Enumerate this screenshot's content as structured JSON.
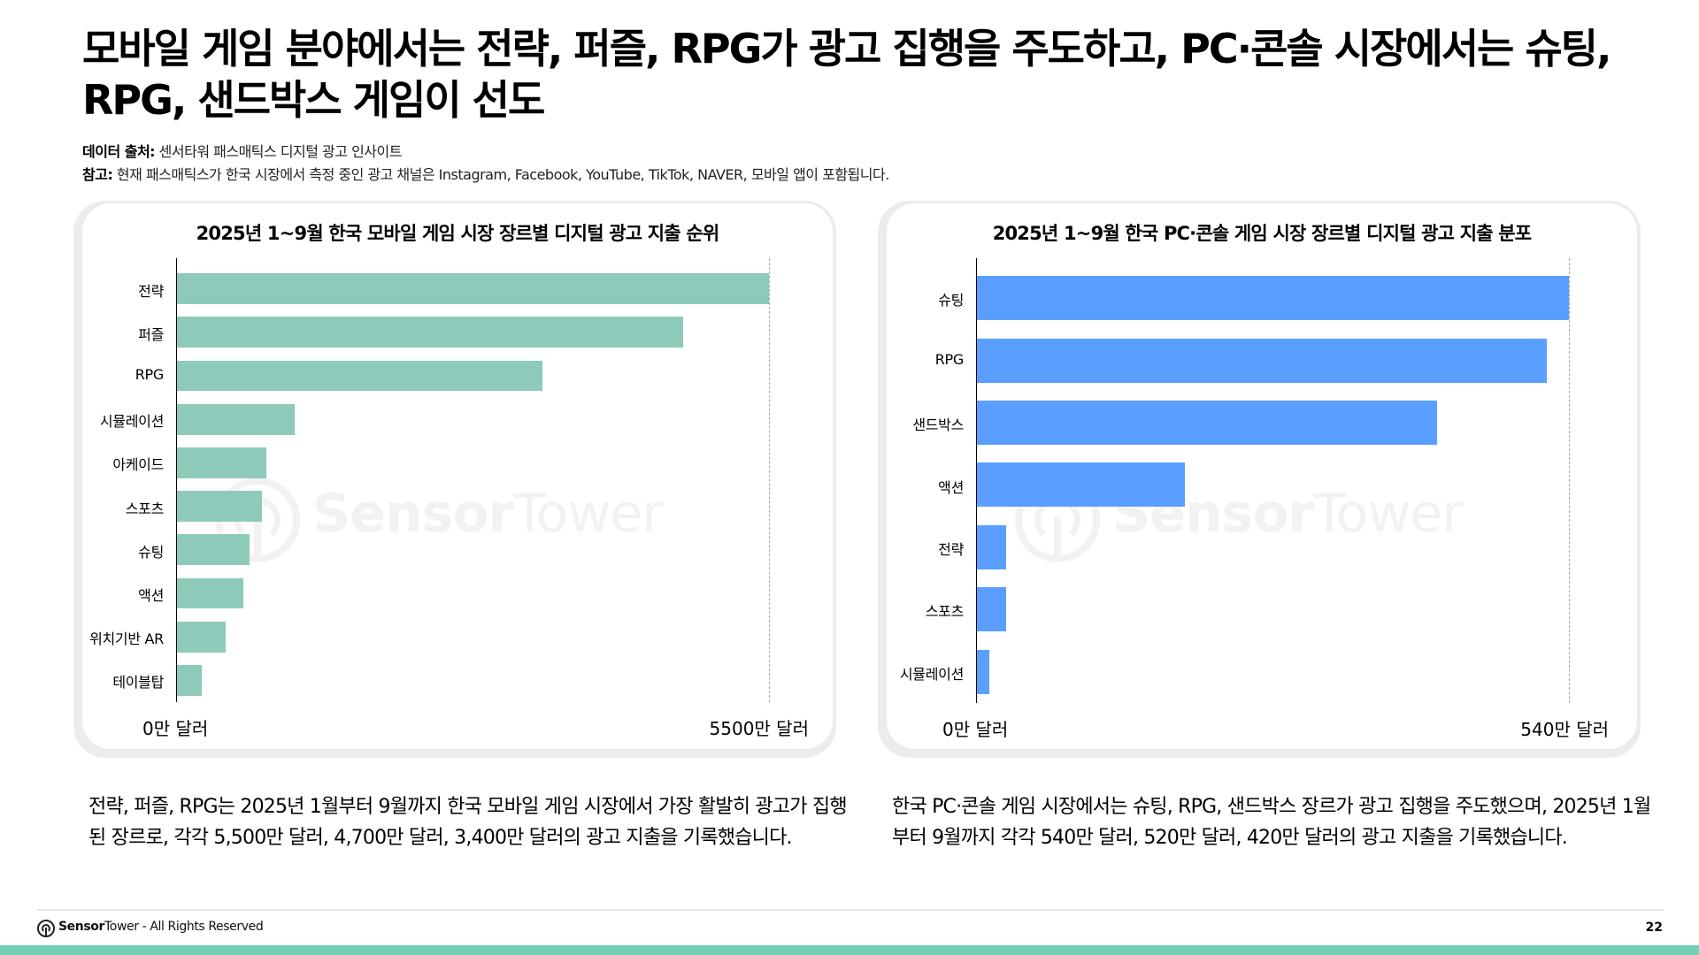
{
  "title": "모바일 게임 분야에서는 전략, 퍼즐, RPG가 광고 집행을 주도하고, PC·콘솔 시장에서는 슈팅, RPG, 샌드박스 게임이 선도",
  "source": {
    "label": "데이터 출처:",
    "text": " 센서타워 패스매틱스 디지털 광고 인사이트"
  },
  "note": {
    "label": "참고:",
    "text": " 현재 패스매틱스가 한국 시장에서 측정 중인 광고 채널은 Instagram, Facebook, YouTube, TikTok, NAVER, 모바일 앱이 포함됩니다."
  },
  "watermark": {
    "bold": "Sensor",
    "light": "Tower"
  },
  "colors": {
    "mobile_bar": "#8ecab9",
    "pc_bar": "#5a9fff",
    "bottom_bar": "#74cfb8",
    "card_frame": "#ececec"
  },
  "chart_data": [
    {
      "type": "bar",
      "orientation": "horizontal",
      "title": "2025년 1~9월 한국 모바일 게임 시장 장르별 디지털 광고 지출 순위",
      "categories": [
        "전략",
        "퍼즐",
        "RPG",
        "시뮬레이션",
        "아케이드",
        "스포츠",
        "슈팅",
        "액션",
        "위치기반 AR",
        "테이블탑"
      ],
      "values": [
        5500,
        4700,
        3400,
        1100,
        840,
        800,
        680,
        620,
        460,
        240
      ],
      "unit": "만 달러",
      "xlim": [
        0,
        5500
      ],
      "tick_labels": [
        "0만 달러",
        "5500만 달러"
      ],
      "xlabel": "",
      "ylabel": "",
      "grid": false,
      "color": "#8ecab9"
    },
    {
      "type": "bar",
      "orientation": "horizontal",
      "title": "2025년 1~9월 한국 PC·콘솔 게임 시장 장르별 디지털 광고 지출 분포",
      "categories": [
        "슈팅",
        "RPG",
        "샌드박스",
        "액션",
        "전략",
        "스포츠",
        "시뮬레이션"
      ],
      "values": [
        540,
        520,
        420,
        190,
        27,
        27,
        12
      ],
      "unit": "만 달러",
      "xlim": [
        0,
        540
      ],
      "tick_labels": [
        "0만 달러",
        "540만 달러"
      ],
      "xlabel": "",
      "ylabel": "",
      "grid": false,
      "color": "#5a9fff"
    }
  ],
  "descriptions": {
    "left": "전략, 퍼즐, RPG는 2025년 1월부터 9월까지 한국 모바일 게임 시장에서 가장 활발히 광고가 집행된 장르로, 각각 5,500만 달러, 4,700만 달러, 3,400만 달러의 광고 지출을 기록했습니다.",
    "right": "한국 PC·콘솔 게임 시장에서는 슈팅, RPG, 샌드박스 장르가 광고 집행을 주도했으며, 2025년 1월부터 9월까지 각각 540만 달러, 520만 달러, 420만 달러의 광고 지출을 기록했습니다."
  },
  "footer": {
    "brand_bold": "Sensor",
    "brand_light": "Tower",
    "rights": " - All Rights Reserved",
    "page": "22"
  }
}
